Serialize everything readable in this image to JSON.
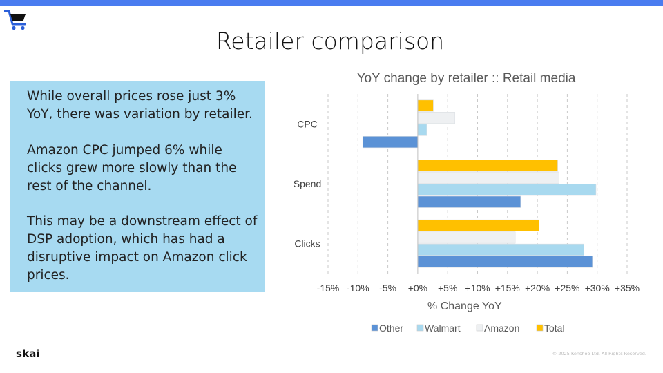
{
  "slide": {
    "title": "Retailer comparison",
    "logo": "skai",
    "copyright": "© 2025 Kenshoo Ltd. All Rights Reserved."
  },
  "text_box": {
    "paragraphs": [
      "While overall prices rose just 3% YoY, there was variation by retailer.",
      "Amazon CPC jumped 6% while clicks grew more slowly than the rest of the channel.",
      "This may be a downstream effect of DSP adoption, which has had a disruptive impact on Amazon click prices."
    ]
  },
  "colors": {
    "accent_bar": "#4a7cf0",
    "text_box_bg": "#a7daf1",
    "cart_icon": "#2b5fd9"
  },
  "icons": [
    "shopping-cart-icon"
  ],
  "chart_data": {
    "type": "bar",
    "orientation": "horizontal",
    "title": "YoY change by retailer :: Retail media",
    "xlabel": "% Change YoY",
    "ylabel": "",
    "xlim": [
      -15,
      35
    ],
    "xticks": [
      -15,
      -10,
      -5,
      0,
      5,
      10,
      15,
      20,
      25,
      30,
      35
    ],
    "xtick_labels": [
      "-15%",
      "-10%",
      "-5%",
      "+0%",
      "+5%",
      "+10%",
      "+15%",
      "+20%",
      "+25%",
      "+30%",
      "+35%"
    ],
    "categories": [
      "CPC",
      "Spend",
      "Clicks"
    ],
    "series": [
      {
        "name": "Other",
        "color": "#5b92d6",
        "values": [
          -9.2,
          17.2,
          29.2
        ]
      },
      {
        "name": "Walmart",
        "color": "#a8d9ef",
        "values": [
          1.5,
          29.8,
          27.8
        ]
      },
      {
        "name": "Amazon",
        "color": "#eef0f2",
        "values": [
          6.2,
          23.6,
          16.3
        ]
      },
      {
        "name": "Total",
        "color": "#ffc000",
        "values": [
          2.6,
          23.4,
          20.3
        ]
      }
    ],
    "grid": "vertical dashed",
    "legend_position": "bottom"
  }
}
